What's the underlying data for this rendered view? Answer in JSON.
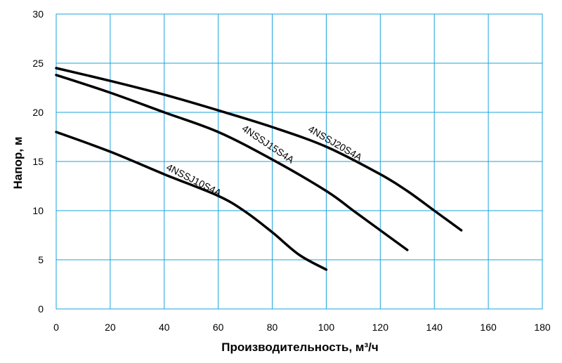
{
  "chart_data": {
    "type": "line",
    "xlabel": "Производительность, м³/ч",
    "ylabel": "Напор, м",
    "xlim": [
      0,
      180
    ],
    "ylim": [
      0,
      30
    ],
    "xticks": [
      "0",
      "20",
      "40",
      "60",
      "80",
      "100",
      "120",
      "140",
      "160",
      "180"
    ],
    "yticks": [
      "0",
      "5",
      "10",
      "15",
      "20",
      "25",
      "30"
    ],
    "grid": true,
    "colors": {
      "grid": "#1aa3dc",
      "line": "#000000"
    },
    "series": [
      {
        "name": "4NSSJ10S4A",
        "x": [
          0,
          20,
          40,
          60,
          70,
          80,
          90,
          100
        ],
        "y": [
          18,
          16,
          13.7,
          11.5,
          9.9,
          7.8,
          5.5,
          4
        ]
      },
      {
        "name": "4NSSJ15S4A",
        "x": [
          0,
          20,
          40,
          60,
          80,
          100,
          110,
          120,
          130
        ],
        "y": [
          23.8,
          22,
          20,
          18,
          15.2,
          12,
          10,
          8,
          6
        ]
      },
      {
        "name": "4NSSJ20S4A",
        "x": [
          0,
          20,
          40,
          60,
          80,
          100,
          120,
          130,
          140,
          150
        ],
        "y": [
          24.5,
          23.2,
          21.8,
          20.2,
          18.5,
          16.5,
          13.7,
          12,
          10,
          8
        ]
      }
    ]
  }
}
